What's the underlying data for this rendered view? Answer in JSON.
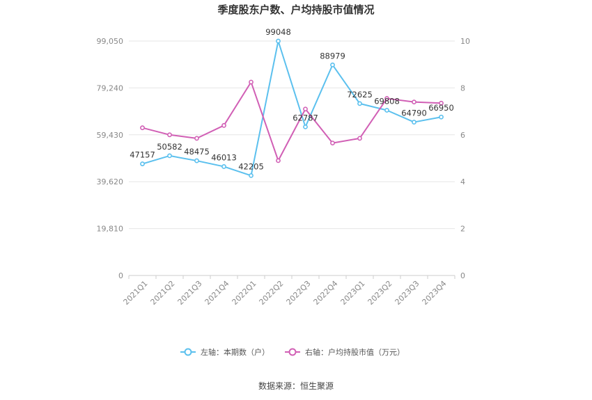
{
  "chart_data": {
    "type": "line",
    "title": "季度股东户数、户均持股市值情况",
    "categories": [
      "2021Q1",
      "2021Q2",
      "2021Q3",
      "2021Q4",
      "2022Q1",
      "2022Q2",
      "2022Q3",
      "2022Q4",
      "2023Q1",
      "2023Q2",
      "2023Q3",
      "2023Q4"
    ],
    "left_axis": {
      "ticks": [
        "0",
        "19,810",
        "39,620",
        "59,430",
        "79,240",
        "99,050"
      ],
      "range": [
        0,
        99050
      ]
    },
    "right_axis": {
      "ticks": [
        "0",
        "2",
        "4",
        "6",
        "8",
        "10"
      ],
      "range": [
        0,
        10
      ]
    },
    "series": [
      {
        "name": "左轴：本期数（户）",
        "axis": "left",
        "color": "#5bc0ee",
        "values": [
          47157,
          50582,
          48475,
          46013,
          42205,
          99048,
          62787,
          88979,
          72625,
          69808,
          64790,
          66950
        ],
        "labels": [
          "47157",
          "50582",
          "48475",
          "46013",
          "42205",
          "99048",
          "62787",
          "88979",
          "72625",
          "69808",
          "64790",
          "66950"
        ]
      },
      {
        "name": "右轴：户均持股市值（万元）",
        "axis": "right",
        "color": "#d15fb5",
        "values": [
          6.3,
          6.0,
          5.85,
          6.4,
          8.25,
          4.9,
          7.1,
          5.65,
          5.85,
          7.55,
          7.4,
          7.35
        ]
      }
    ],
    "grid": true,
    "legend_position": "bottom"
  },
  "source": "数据来源：恒生聚源"
}
